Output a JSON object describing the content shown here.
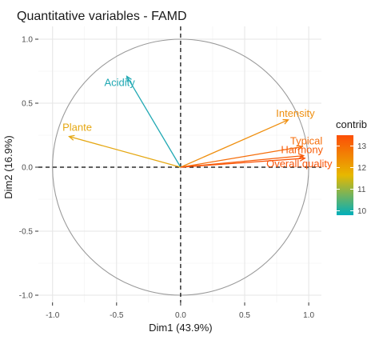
{
  "chart_data": {
    "type": "scatter",
    "title": "Quantitative variables - FAMD",
    "xlabel": "Dim1 (43.9%)",
    "ylabel": "Dim2 (16.9%)",
    "xlim": [
      -1.0,
      1.0
    ],
    "ylim": [
      -1.0,
      1.0
    ],
    "x_ticks": [
      "-1.0",
      "-0.5",
      "0.0",
      "0.5",
      "1.0"
    ],
    "y_ticks": [
      "1.0",
      "0.5",
      "0.0",
      "-0.5",
      "-1.0"
    ],
    "grid": true,
    "legend": {
      "title": "contrib",
      "ticks": [
        "13",
        "12",
        "11",
        "10"
      ],
      "placement": "right",
      "range": [
        9.8,
        13.7
      ],
      "colors": [
        "#00AFBB",
        "#E7B800",
        "#FC4E07"
      ]
    },
    "variables": [
      {
        "name": "Acidity",
        "x": -0.42,
        "y": 0.71,
        "contrib": 9.8,
        "color": "#22a9b4"
      },
      {
        "name": "Plante",
        "x": -0.87,
        "y": 0.24,
        "contrib": 11.9,
        "color": "#e5a711"
      },
      {
        "name": "Intensity",
        "x": 0.84,
        "y": 0.37,
        "contrib": 12.5,
        "color": "#ef8f0f"
      },
      {
        "name": "Typical",
        "x": 0.95,
        "y": 0.16,
        "contrib": 13.1,
        "color": "#f56e0b"
      },
      {
        "name": "Harmony",
        "x": 0.96,
        "y": 0.09,
        "contrib": 13.4,
        "color": "#f85d09"
      },
      {
        "name": "Overall.quality",
        "x": 0.97,
        "y": 0.07,
        "contrib": 13.6,
        "color": "#fa5408"
      }
    ]
  }
}
